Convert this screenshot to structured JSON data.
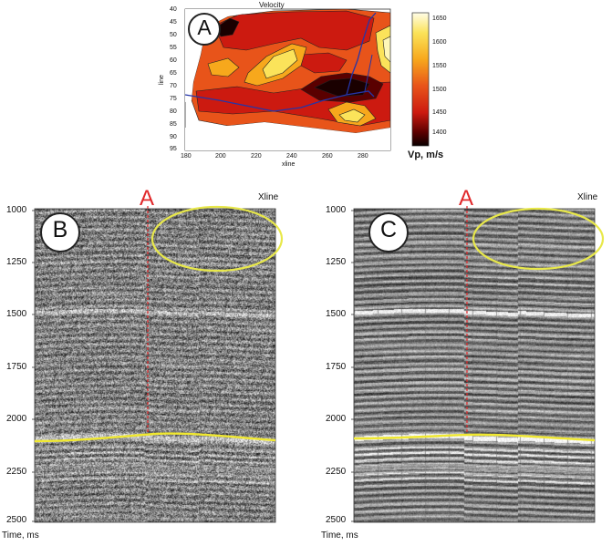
{
  "velocity_map": {
    "title": "Velocity",
    "panel_letter": "A",
    "ylabel": "line",
    "xlabel": "xline",
    "y_ticks": [
      "40",
      "45",
      "50",
      "55",
      "60",
      "65",
      "70",
      "75",
      "80",
      "85",
      "90",
      "95"
    ],
    "x_ticks": [
      "180",
      "200",
      "220",
      "240",
      "260",
      "280"
    ],
    "colorbar_ticks": [
      "1650",
      "1600",
      "1550",
      "1500",
      "1450",
      "1400"
    ],
    "colorbar_label": "Vp, m/s",
    "colors": {
      "dark": "#1a0000",
      "red": "#cc1a10",
      "orange": "#e8541a",
      "yellow_orange": "#f7a81c",
      "yellow": "#fbe35a",
      "pale": "#fff7b8"
    }
  },
  "seismic_left": {
    "panel_letter": "B",
    "marker_label": "A",
    "axis_title": "Xline",
    "time_label": "Time, ms",
    "ticks": [
      "1000",
      "1250",
      "1500",
      "1750",
      "2000",
      "2250",
      "2500"
    ]
  },
  "seismic_right": {
    "panel_letter": "C",
    "marker_label": "A",
    "axis_title": "Xline",
    "time_label": "Time, ms",
    "ticks": [
      "1000",
      "1250",
      "1500",
      "1750",
      "2000",
      "2250",
      "2500"
    ]
  },
  "colors": {
    "marker": "#e0282a",
    "highlight": "#e8e84a",
    "horizon": "#f0e830"
  }
}
